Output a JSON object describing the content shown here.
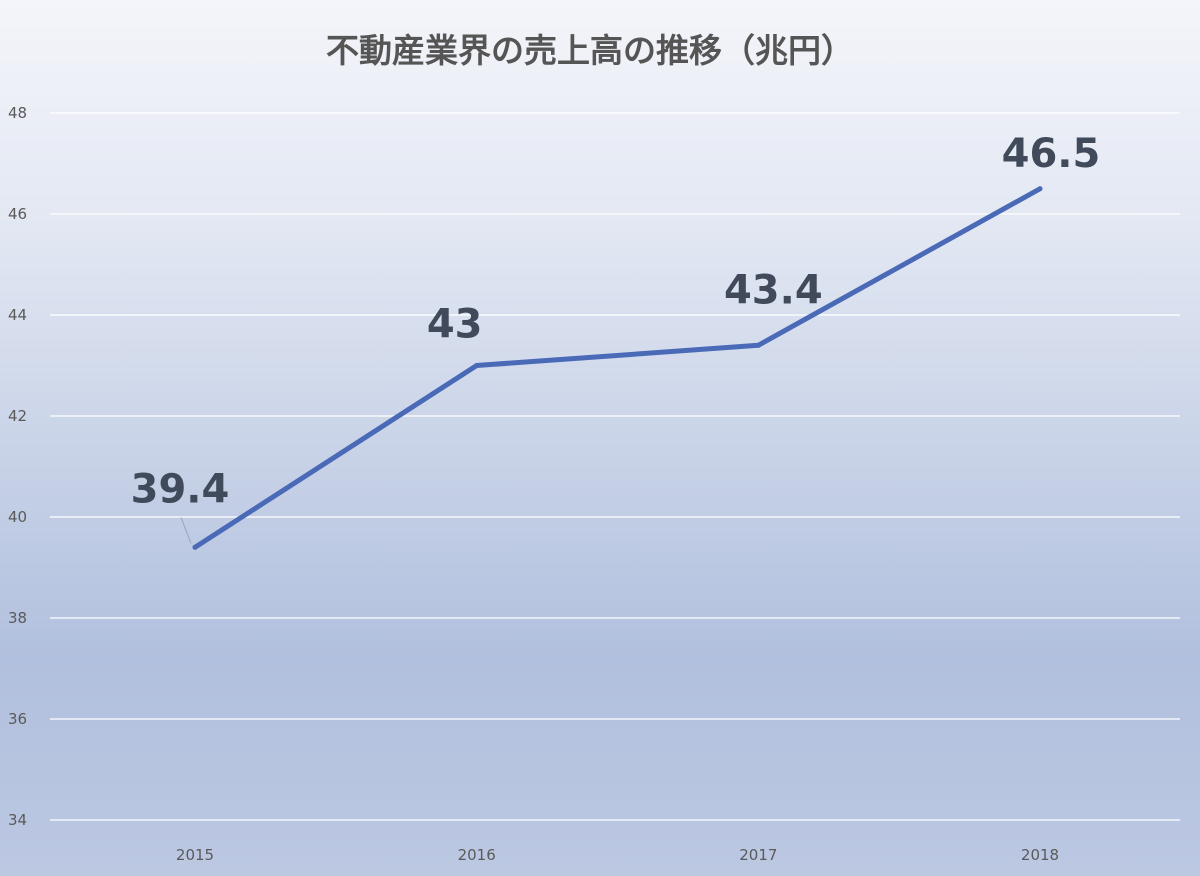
{
  "chart_data": {
    "type": "line",
    "title": "不動産業界の売上高の推移（兆円）",
    "categories": [
      "2015",
      "2016",
      "2017",
      "2018"
    ],
    "series": [
      {
        "values": [
          39.4,
          43,
          43.4,
          46.5
        ]
      }
    ],
    "data_labels": [
      "39.4",
      "43",
      "43.4",
      "46.5"
    ],
    "ylim": [
      34,
      48
    ],
    "y_ticks": [
      "34",
      "36",
      "38",
      "40",
      "42",
      "44",
      "46",
      "48"
    ],
    "grid": true,
    "legend": "none",
    "colors": {
      "line": "#4a6ab8"
    }
  }
}
